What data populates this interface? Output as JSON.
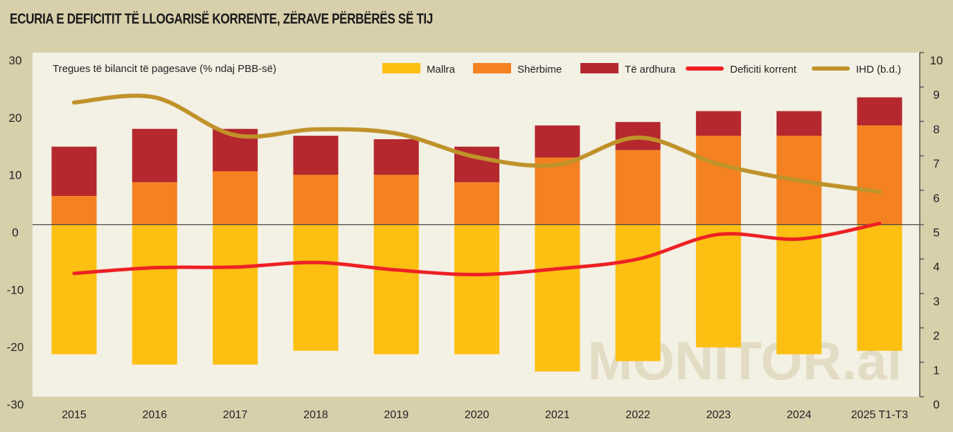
{
  "title": "ECURIA E DEFICITIT TË LLOGARISË KORRENTE, ZËRAVE PËRBËRËS SË TIJ",
  "watermark": "MONITOR.al",
  "colors": {
    "goods": "#fdbf12",
    "services": "#f58220",
    "income": "#b5282e",
    "deficit": "#ee2024",
    "ihd": "#c0922a",
    "plot_bg": "#f3f0e4",
    "bg": "#d8cfab"
  },
  "chart_data": {
    "type": "bar",
    "title": "Tregues të bilancit të pagesave (% ndaj PBB-së)",
    "categories": [
      "2015",
      "2016",
      "2017",
      "2018",
      "2019",
      "2020",
      "2021",
      "2022",
      "2023",
      "2024",
      "2025 T1-T3"
    ],
    "left_axis": {
      "ylim": [
        -30,
        30
      ],
      "ticks": [
        "30",
        "20",
        "10",
        "0",
        "-10",
        "-20",
        "-30"
      ]
    },
    "right_axis": {
      "ylim": [
        0,
        10
      ],
      "ticks": [
        "10",
        "9",
        "8",
        "7",
        "6",
        "5",
        "4",
        "3",
        "2",
        "1",
        "0"
      ]
    },
    "series": [
      {
        "name": "Mallra",
        "type": "bar",
        "values": [
          -22.6,
          -24.4,
          -24.4,
          -22.0,
          -22.6,
          -22.6,
          -25.6,
          -23.8,
          -21.4,
          -22.6,
          -22.0
        ]
      },
      {
        "name": "Shërbime",
        "type": "bar",
        "values": [
          5.0,
          7.4,
          9.3,
          8.7,
          8.7,
          7.4,
          11.7,
          13.0,
          15.5,
          15.5,
          17.3
        ]
      },
      {
        "name": "Të ardhura",
        "type": "bar",
        "values": [
          8.6,
          9.3,
          7.4,
          6.8,
          6.2,
          6.2,
          5.6,
          4.9,
          4.3,
          4.3,
          4.9
        ]
      },
      {
        "name": "Deficiti korrent",
        "type": "line",
        "values": [
          -8.5,
          -7.5,
          -7.4,
          -6.6,
          -7.9,
          -8.7,
          -7.7,
          -6.0,
          -1.7,
          -2.5,
          0.2
        ]
      },
      {
        "name": "IHD (b.d.)",
        "type": "line",
        "axis": "right",
        "values": [
          8.55,
          8.7,
          7.6,
          7.77,
          7.65,
          6.96,
          6.74,
          7.53,
          6.76,
          6.28,
          5.96
        ]
      }
    ],
    "legend": "top-right"
  }
}
